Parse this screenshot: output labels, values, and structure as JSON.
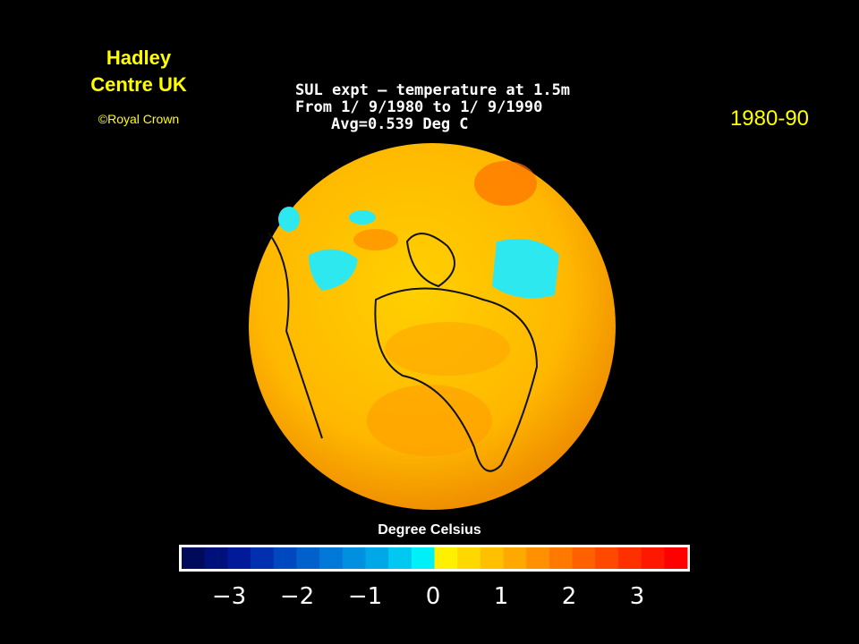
{
  "header": {
    "title_lines": [
      "Hadley",
      "Centre UK"
    ],
    "credit": "©Royal Crown",
    "period": "1980-90"
  },
  "plot": {
    "lines": [
      "SUL expt – temperature at 1.5m",
      "From 1/ 9/1980 to 1/ 9/1990",
      "Avg=0.539 Deg C"
    ],
    "colorbar": {
      "label": "Degree Celsius",
      "colors": [
        "#000a5a",
        "#00107a",
        "#001a9a",
        "#0030b0",
        "#0048c0",
        "#0060cc",
        "#0078d8",
        "#0090e0",
        "#00a8e8",
        "#00c8f0",
        "#00f0f8",
        "#fff000",
        "#ffd800",
        "#ffc000",
        "#ffa800",
        "#ff9000",
        "#ff7800",
        "#ff6000",
        "#ff4800",
        "#ff3000",
        "#ff1800",
        "#ff0000"
      ],
      "ticks": [
        {
          "value": -3,
          "label": "−3"
        },
        {
          "value": -2,
          "label": "−2"
        },
        {
          "value": -1,
          "label": "−1"
        },
        0,
        1,
        2,
        3
      ]
    }
  }
}
